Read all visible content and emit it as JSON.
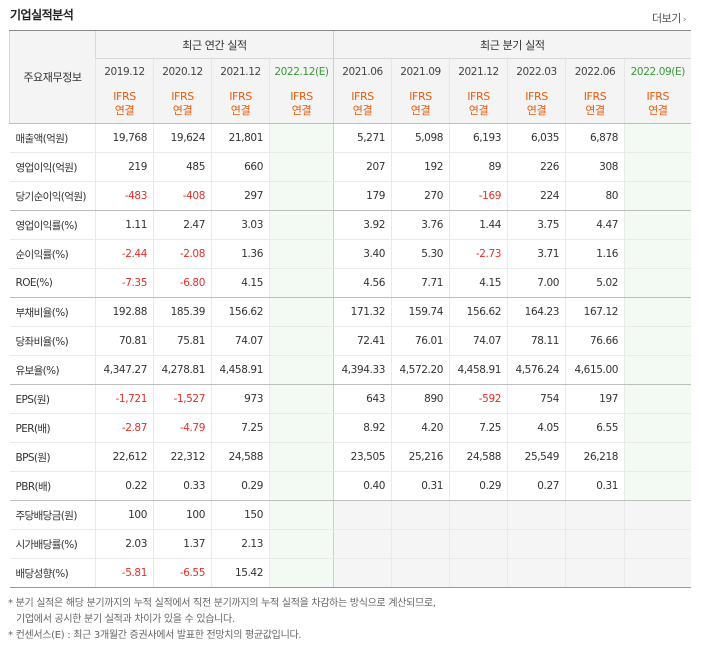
{
  "header": {
    "title": "기업실적분석",
    "more_label": "더보기",
    "more_arrow": "›"
  },
  "table": {
    "corner_label": "주요재무정보",
    "annual_header": "최근 연간 실적",
    "quarterly_header": "최근 분기 실적",
    "ifrs_label": "IFRS",
    "consol_label": "연결",
    "annual_periods": [
      "2019.12",
      "2020.12",
      "2021.12",
      "2022.12(E)"
    ],
    "quarterly_periods": [
      "2021.06",
      "2021.09",
      "2021.12",
      "2022.03",
      "2022.06",
      "2022.09(E)"
    ],
    "rows": [
      {
        "label": "매출액(억원)",
        "annual": [
          "19,768",
          "19,624",
          "21,801",
          ""
        ],
        "quarterly": [
          "5,271",
          "5,098",
          "6,193",
          "6,035",
          "6,878",
          ""
        ]
      },
      {
        "label": "영업이익(억원)",
        "annual": [
          "219",
          "485",
          "660",
          ""
        ],
        "quarterly": [
          "207",
          "192",
          "89",
          "226",
          "308",
          ""
        ]
      },
      {
        "label": "당기순이익(억원)",
        "annual": [
          "-483",
          "-408",
          "297",
          ""
        ],
        "quarterly": [
          "179",
          "270",
          "-169",
          "224",
          "80",
          ""
        ],
        "group_end": true
      },
      {
        "label": "영업이익률(%)",
        "annual": [
          "1.11",
          "2.47",
          "3.03",
          ""
        ],
        "quarterly": [
          "3.92",
          "3.76",
          "1.44",
          "3.75",
          "4.47",
          ""
        ]
      },
      {
        "label": "순이익률(%)",
        "annual": [
          "-2.44",
          "-2.08",
          "1.36",
          ""
        ],
        "quarterly": [
          "3.40",
          "5.30",
          "-2.73",
          "3.71",
          "1.16",
          ""
        ]
      },
      {
        "label": "ROE(%)",
        "annual": [
          "-7.35",
          "-6.80",
          "4.15",
          ""
        ],
        "quarterly": [
          "4.56",
          "7.71",
          "4.15",
          "7.00",
          "5.02",
          ""
        ],
        "group_end": true
      },
      {
        "label": "부채비율(%)",
        "annual": [
          "192.88",
          "185.39",
          "156.62",
          ""
        ],
        "quarterly": [
          "171.32",
          "159.74",
          "156.62",
          "164.23",
          "167.12",
          ""
        ]
      },
      {
        "label": "당좌비율(%)",
        "annual": [
          "70.81",
          "75.81",
          "74.07",
          ""
        ],
        "quarterly": [
          "72.41",
          "76.01",
          "74.07",
          "78.11",
          "76.66",
          ""
        ]
      },
      {
        "label": "유보율(%)",
        "annual": [
          "4,347.27",
          "4,278.81",
          "4,458.91",
          ""
        ],
        "quarterly": [
          "4,394.33",
          "4,572.20",
          "4,458.91",
          "4,576.24",
          "4,615.00",
          ""
        ],
        "group_end": true
      },
      {
        "label": "EPS(원)",
        "annual": [
          "-1,721",
          "-1,527",
          "973",
          ""
        ],
        "quarterly": [
          "643",
          "890",
          "-592",
          "754",
          "197",
          ""
        ]
      },
      {
        "label": "PER(배)",
        "annual": [
          "-2.87",
          "-4.79",
          "7.25",
          ""
        ],
        "quarterly": [
          "8.92",
          "4.20",
          "7.25",
          "4.05",
          "6.55",
          ""
        ]
      },
      {
        "label": "BPS(원)",
        "annual": [
          "22,612",
          "22,312",
          "24,588",
          ""
        ],
        "quarterly": [
          "23,505",
          "25,216",
          "24,588",
          "25,549",
          "26,218",
          ""
        ]
      },
      {
        "label": "PBR(배)",
        "annual": [
          "0.22",
          "0.33",
          "0.29",
          ""
        ],
        "quarterly": [
          "0.40",
          "0.31",
          "0.29",
          "0.27",
          "0.31",
          ""
        ],
        "group_end": true
      },
      {
        "label": "주당배당금(원)",
        "annual": [
          "100",
          "100",
          "150",
          ""
        ],
        "quarterly": [
          "",
          "",
          "",
          "",
          "",
          ""
        ],
        "q_gray": true
      },
      {
        "label": "시가배당률(%)",
        "annual": [
          "2.03",
          "1.37",
          "2.13",
          ""
        ],
        "quarterly": [
          "",
          "",
          "",
          "",
          "",
          ""
        ],
        "q_gray": true
      },
      {
        "label": "배당성향(%)",
        "annual": [
          "-5.81",
          "-6.55",
          "15.42",
          ""
        ],
        "quarterly": [
          "",
          "",
          "",
          "",
          "",
          ""
        ],
        "q_gray": true,
        "last": true
      }
    ]
  },
  "notes": [
    "* 분기 실적은 해당 분기까지의 누적 실적에서 직전 분기까지의 누적 실적을 차감하는 방식으로 계산되므로,",
    "  기업에서 공시한 분기 실적과 차이가 있을 수 있습니다.",
    "* 컨센서스(E) : 최근 3개월간 증권사에서 발표한 전망치의 평균값입니다."
  ],
  "colors": {
    "negative": "#e0302a",
    "ifrs": "#e85c0d",
    "estimate": "#3a9a3a",
    "estimate_bg": "#f3f9f3"
  }
}
